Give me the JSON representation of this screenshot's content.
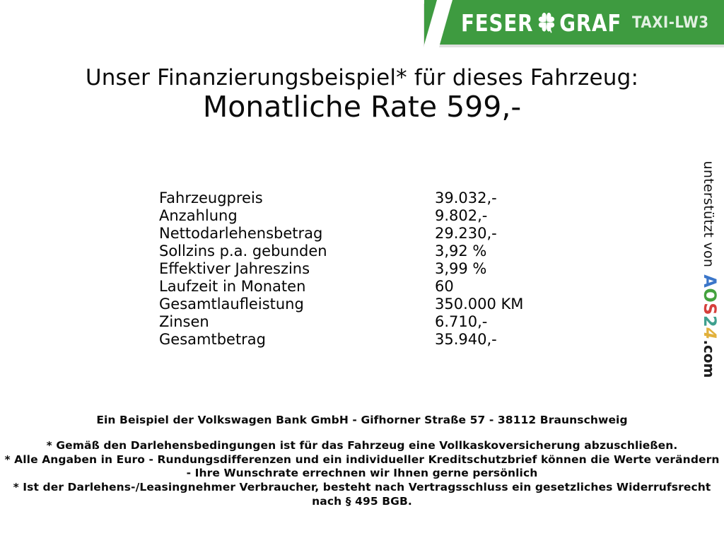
{
  "colors": {
    "brand_green": "#3E9B40",
    "text": "#000000"
  },
  "banner": {
    "brand_left": "FESER",
    "brand_right": "GRAF",
    "clover_icon": "four-leaf-clover",
    "tag": "TAXI-LW3"
  },
  "headline": {
    "line1": "Unser Finanzierungsbeispiel* für dieses Fahrzeug:",
    "line2": "Monatliche Rate 599,-"
  },
  "finance_table": {
    "rows": [
      {
        "label": "Fahrzeugpreis",
        "value": "39.032,-"
      },
      {
        "label": "Anzahlung",
        "value": "9.802,-"
      },
      {
        "label": "Nettodarlehensbetrag",
        "value": "29.230,-"
      },
      {
        "label": "Sollzins p.a. gebunden",
        "value": "3,92 %"
      },
      {
        "label": "Effektiver Jahreszins",
        "value": "3,99 %"
      },
      {
        "label": "Laufzeit in Monaten",
        "value": "60"
      },
      {
        "label": "Gesamtlaufleistung",
        "value": "350.000 KM"
      },
      {
        "label": "Zinsen",
        "value": "6.710,-"
      },
      {
        "label": "Gesamtbetrag",
        "value": "35.940,-"
      }
    ]
  },
  "sponsor": {
    "prefix": "unterstützt von",
    "logo_letters": [
      {
        "char": "A",
        "color": "#3B76C9"
      },
      {
        "char": "O",
        "color": "#44A23E"
      },
      {
        "char": "S",
        "color": "#D6403C"
      },
      {
        "char": "2",
        "color": "#3FA08E"
      },
      {
        "char": "4",
        "color": "#E2B13C",
        "style": "swirl"
      }
    ],
    "suffix": ".com"
  },
  "footer": {
    "bank_line": "Ein Beispiel der Volkswagen Bank GmbH - Gifhorner Straße 57 - 38112 Braunschweig",
    "disclaimers": [
      "* Gemäß den Darlehensbedingungen ist für das Fahrzeug eine Vollkaskoversicherung abzuschließen.",
      "* Alle Angaben in Euro - Rundungsdifferenzen und ein individueller Kreditschutzbrief können die Werte verändern",
      "- Ihre Wunschrate errechnen wir Ihnen gerne persönlich",
      "* Ist der Darlehens-/Leasingnehmer Verbraucher, besteht nach Vertragsschluss ein gesetzliches Widerrufsrecht",
      "nach § 495 BGB."
    ]
  }
}
